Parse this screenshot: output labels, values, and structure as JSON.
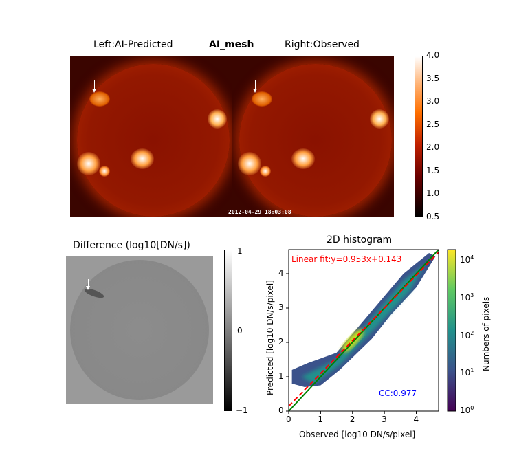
{
  "top_panel": {
    "left_label": "Left:AI-Predicted",
    "title": "AI_mesh",
    "right_label": "Right:Observed",
    "timestamp": "2012-04-29 18:03:08",
    "colorbar": {
      "colormap": "hot",
      "range": [
        0.5,
        4.0
      ],
      "ticks": [
        "4.0",
        "3.5",
        "3.0",
        "2.5",
        "2.0",
        "1.5",
        "1.0",
        "0.5"
      ]
    }
  },
  "difference_panel": {
    "title": "Difference (log10[DN/s])",
    "colorbar": {
      "colormap": "gray",
      "range": [
        -1,
        1
      ],
      "ticks": [
        "1",
        "0",
        "−1"
      ]
    }
  },
  "chart_data": {
    "type": "heatmap",
    "title": "2D histogram",
    "xlabel": "Observed [log10 DN/s/pixel]",
    "ylabel": "Predicted [log10 DN/s/pixel]",
    "xlim": [
      0,
      4.7
    ],
    "ylim": [
      0,
      4.7
    ],
    "xticks": [
      "0",
      "1",
      "2",
      "3",
      "4"
    ],
    "yticks": [
      "0",
      "1",
      "2",
      "3",
      "4"
    ],
    "fit_label": "Linear fit:y=0.953x+0.143",
    "fit": {
      "slope": 0.953,
      "intercept": 0.143,
      "color": "#ff0000",
      "style": "dashed"
    },
    "identity_line": {
      "slope": 1,
      "intercept": 0,
      "color": "#008000"
    },
    "cc_label": "CC:0.977",
    "colorbar": {
      "label": "Numbers of pixels",
      "scale": "log",
      "colormap": "viridis",
      "range": [
        1,
        20000
      ],
      "ticks": [
        "10^4",
        "10^3",
        "10^2",
        "10^1",
        "10^0"
      ]
    }
  }
}
